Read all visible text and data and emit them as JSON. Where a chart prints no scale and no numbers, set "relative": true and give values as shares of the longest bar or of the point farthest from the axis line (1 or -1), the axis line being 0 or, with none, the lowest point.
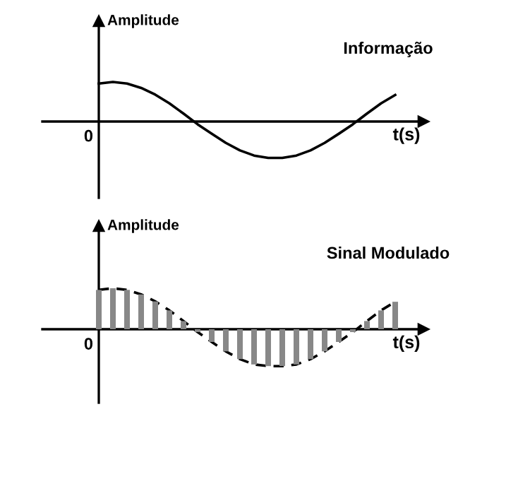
{
  "chart_data": [
    {
      "type": "line",
      "title": "Informação",
      "ylabel": "Amplitude",
      "xlabel": "t(s)",
      "annotations": [
        "0"
      ],
      "relative": true,
      "categories": [
        null,
        null,
        null,
        null,
        null,
        null,
        null,
        null,
        null,
        null,
        null,
        null,
        null,
        null,
        null,
        null,
        null,
        null,
        null,
        null,
        null,
        null
      ],
      "series": [
        {
          "color": "#000000",
          "values": [
            0.96,
            1.0,
            0.96,
            0.85,
            0.68,
            0.46,
            0.2,
            -0.07,
            -0.31,
            -0.54,
            -0.73,
            -0.86,
            -0.92,
            -0.92,
            -0.86,
            -0.73,
            -0.54,
            -0.31,
            -0.07,
            0.2,
            0.46,
            0.67
          ]
        }
      ]
    },
    {
      "type": "bar",
      "title": "Sinal Modulado",
      "ylabel": "Amplitude",
      "xlabel": "t(s)",
      "annotations": [
        "0"
      ],
      "relative": true,
      "categories": [
        null,
        null,
        null,
        null,
        null,
        null,
        null,
        null,
        null,
        null,
        null,
        null,
        null,
        null,
        null,
        null,
        null,
        null,
        null,
        null,
        null,
        null
      ],
      "series": [
        {
          "type": "bar",
          "color": "#888888",
          "values": [
            0.96,
            1.0,
            0.96,
            0.85,
            0.68,
            0.46,
            0.2,
            -0.07,
            -0.31,
            -0.54,
            -0.73,
            -0.86,
            -0.9,
            -0.9,
            -0.86,
            -0.73,
            -0.54,
            -0.31,
            -0.07,
            0.2,
            0.46,
            0.67
          ]
        },
        {
          "type": "line",
          "color": "#000000",
          "line_style": "dashed",
          "values": [
            0.96,
            1.0,
            0.96,
            0.85,
            0.68,
            0.46,
            0.2,
            -0.07,
            -0.31,
            -0.54,
            -0.73,
            -0.86,
            -0.9,
            -0.9,
            -0.86,
            -0.73,
            -0.54,
            -0.31,
            -0.07,
            0.2,
            0.46,
            0.67
          ]
        }
      ]
    }
  ]
}
